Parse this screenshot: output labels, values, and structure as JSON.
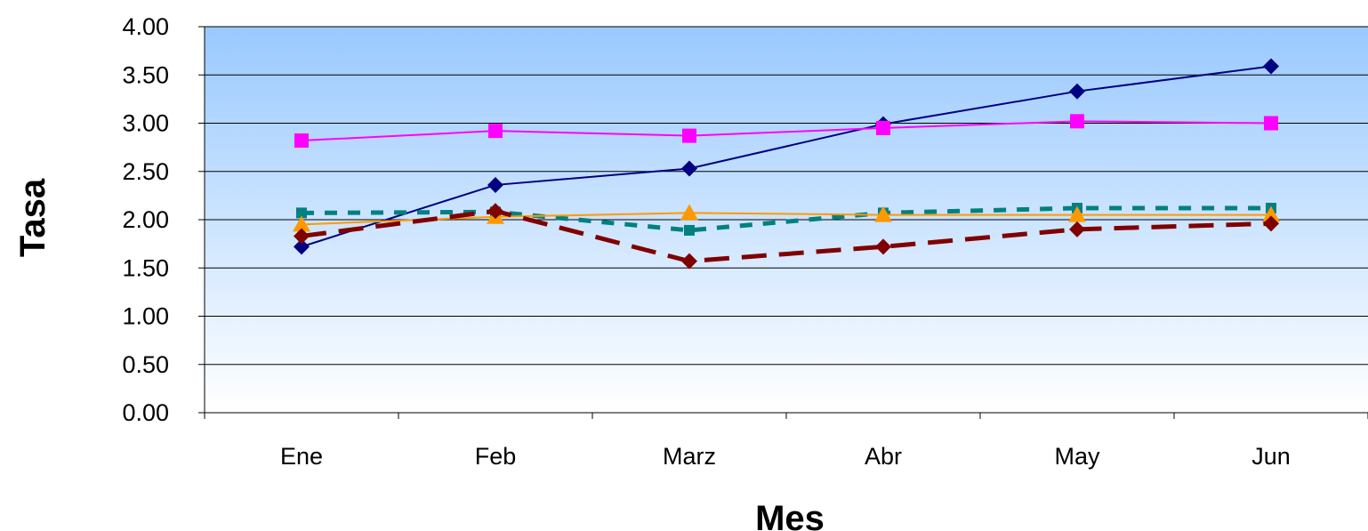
{
  "chart_data": {
    "type": "line",
    "title": "",
    "xlabel": "Mes",
    "ylabel": "Tasa",
    "categories": [
      "Ene",
      "Feb",
      "Marz",
      "Abr",
      "May",
      "Jun"
    ],
    "y_tick_labels": [
      "0.00",
      "0.50",
      "1.00",
      "1.50",
      "2.00",
      "2.50",
      "3.00",
      "3.50",
      "4.00"
    ],
    "ylim": [
      0,
      4
    ],
    "grid": "horizontal",
    "legend": "none",
    "plot_background": {
      "top": "#99c9ff",
      "bottom": "#ffffff"
    },
    "series": [
      {
        "color": "#000080",
        "marker": "diamond",
        "dash": "solid",
        "values": [
          1.72,
          2.36,
          2.53,
          2.99,
          3.33,
          3.59
        ]
      },
      {
        "color": "#ff00ff",
        "marker": "square",
        "dash": "solid",
        "values": [
          2.82,
          2.92,
          2.87,
          2.95,
          3.02,
          3.0
        ]
      },
      {
        "color": "#008080",
        "marker": "square",
        "dash": "dotted",
        "values": [
          2.07,
          2.08,
          1.89,
          2.07,
          2.12,
          2.12
        ]
      },
      {
        "color": "#ff9900",
        "marker": "triangle",
        "dash": "solid",
        "values": [
          1.95,
          2.03,
          2.07,
          2.05,
          2.05,
          2.05
        ]
      },
      {
        "color": "#800000",
        "marker": "diamond",
        "dash": "dashed",
        "values": [
          1.83,
          2.09,
          1.57,
          1.72,
          1.9,
          1.96
        ]
      }
    ]
  }
}
